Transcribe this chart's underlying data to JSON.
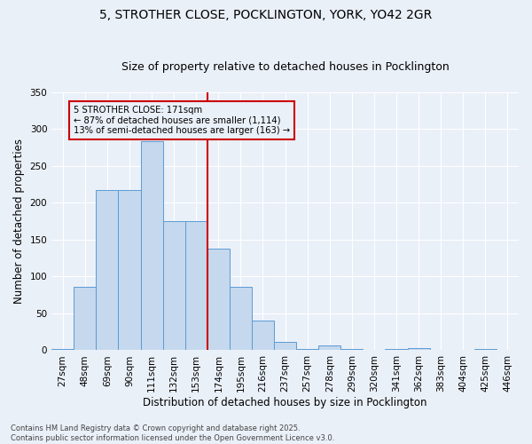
{
  "title_line1": "5, STROTHER CLOSE, POCKLINGTON, YORK, YO42 2GR",
  "title_line2": "Size of property relative to detached houses in Pocklington",
  "xlabel": "Distribution of detached houses by size in Pocklington",
  "ylabel": "Number of detached properties",
  "categories": [
    "27sqm",
    "48sqm",
    "69sqm",
    "90sqm",
    "111sqm",
    "132sqm",
    "153sqm",
    "174sqm",
    "195sqm",
    "216sqm",
    "237sqm",
    "257sqm",
    "278sqm",
    "299sqm",
    "320sqm",
    "341sqm",
    "362sqm",
    "383sqm",
    "404sqm",
    "425sqm",
    "446sqm"
  ],
  "values": [
    2,
    86,
    218,
    218,
    284,
    175,
    175,
    138,
    86,
    40,
    11,
    2,
    6,
    2,
    0,
    2,
    3,
    0,
    0,
    2,
    0
  ],
  "bar_color": "#c5d8ed",
  "bar_edge_color": "#5b9bd5",
  "vline_x_index": 6.5,
  "vline_color": "#cc0000",
  "annotation_text": "5 STROTHER CLOSE: 171sqm\n← 87% of detached houses are smaller (1,114)\n13% of semi-detached houses are larger (163) →",
  "annotation_box_color": "#cc0000",
  "background_color": "#eaf0f8",
  "footer_text": "Contains HM Land Registry data © Crown copyright and database right 2025.\nContains public sector information licensed under the Open Government Licence v3.0.",
  "ylim": [
    0,
    350
  ],
  "yticks": [
    0,
    50,
    100,
    150,
    200,
    250,
    300,
    350
  ],
  "grid_color": "#ffffff",
  "title_fontsize": 10,
  "subtitle_fontsize": 9,
  "axis_label_fontsize": 8.5,
  "tick_fontsize": 7.5,
  "footer_fontsize": 6.0
}
